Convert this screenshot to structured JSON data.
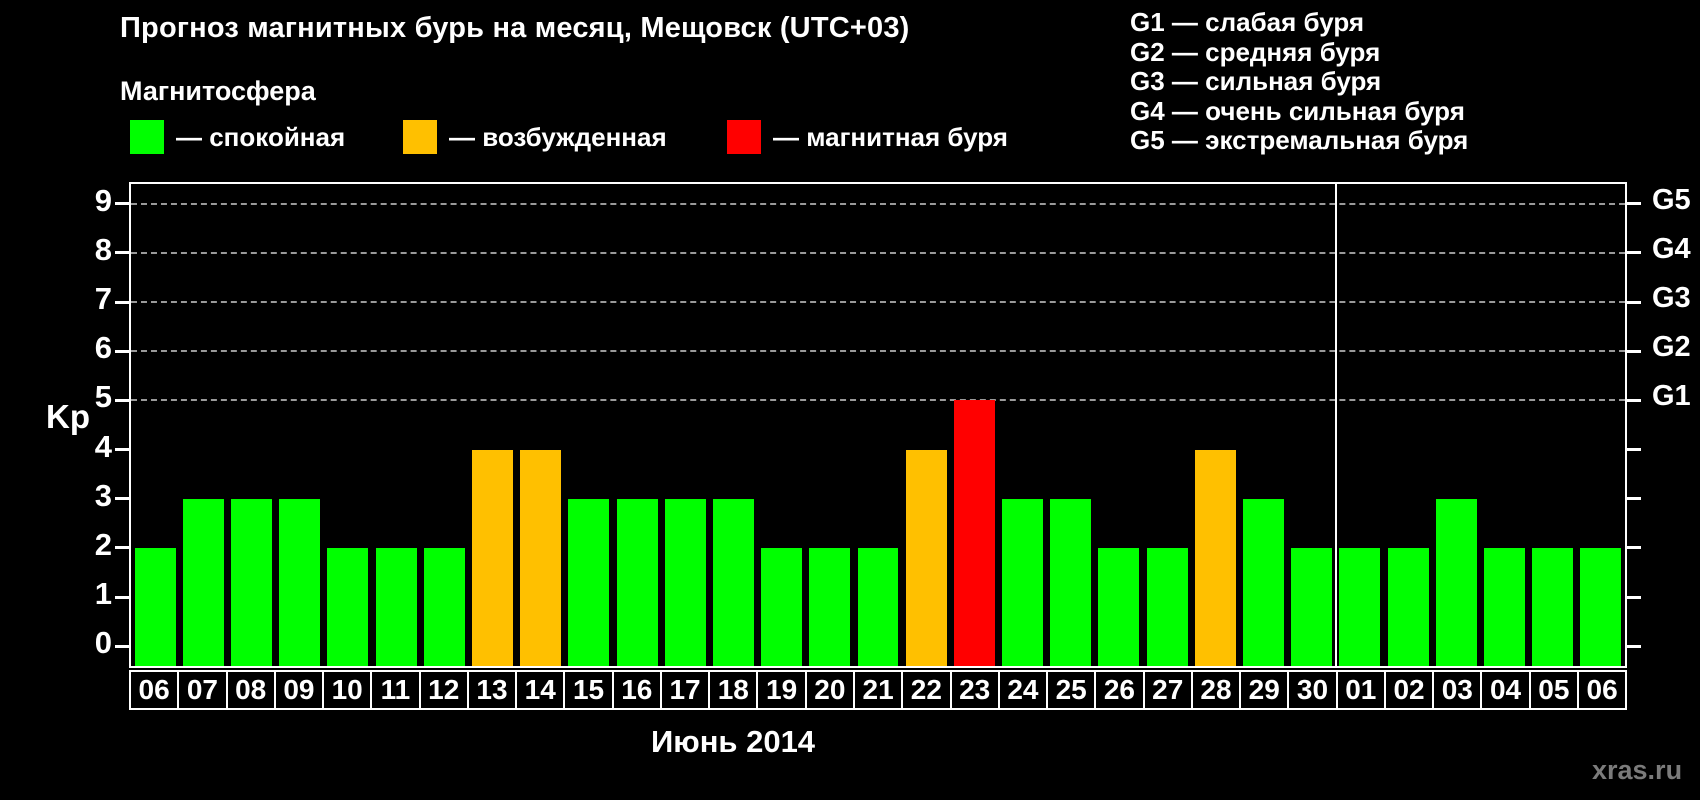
{
  "header": {
    "title": "Прогноз магнитных бурь на месяц, Мещовск (UTC+03)",
    "watermark": "xras.ru"
  },
  "legend": {
    "title": "Магнитосфера",
    "items": [
      {
        "label": "— спокойная",
        "color": "#00ff00"
      },
      {
        "label": "— возбужденная",
        "color": "#ffc000"
      },
      {
        "label": "— магнитная буря",
        "color": "#ff0000"
      }
    ]
  },
  "g_scale_legend": {
    "items": [
      "G1 — слабая буря",
      "G2 — средняя буря",
      "G3 — сильная буря",
      "G4 — очень сильная буря",
      "G5 — экстремальная буря"
    ]
  },
  "chart_data": {
    "type": "bar",
    "title": "Прогноз магнитных бурь на месяц, Мещовск (UTC+03)",
    "ylabel_left": "Kp",
    "x_caption": "Июнь 2014",
    "categories": [
      "06",
      "07",
      "08",
      "09",
      "10",
      "11",
      "12",
      "13",
      "14",
      "15",
      "16",
      "17",
      "18",
      "19",
      "20",
      "21",
      "22",
      "23",
      "24",
      "25",
      "26",
      "27",
      "28",
      "29",
      "30",
      "01",
      "02",
      "03",
      "04",
      "05",
      "06"
    ],
    "values": [
      2,
      3,
      3,
      3,
      2,
      2,
      2,
      4,
      4,
      3,
      3,
      3,
      3,
      2,
      2,
      2,
      4,
      5,
      3,
      3,
      2,
      2,
      4,
      3,
      2,
      2,
      2,
      3,
      2,
      2,
      2
    ],
    "bar_colors": [
      "#00ff00",
      "#00ff00",
      "#00ff00",
      "#00ff00",
      "#00ff00",
      "#00ff00",
      "#00ff00",
      "#ffc000",
      "#ffc000",
      "#00ff00",
      "#00ff00",
      "#00ff00",
      "#00ff00",
      "#00ff00",
      "#00ff00",
      "#00ff00",
      "#ffc000",
      "#ff0000",
      "#00ff00",
      "#00ff00",
      "#00ff00",
      "#00ff00",
      "#ffc000",
      "#00ff00",
      "#00ff00",
      "#00ff00",
      "#00ff00",
      "#00ff00",
      "#00ff00",
      "#00ff00",
      "#00ff00"
    ],
    "color_rule": {
      "quiet_kp_max": 3,
      "active_kp": 4,
      "storm_kp_min": 5
    },
    "ylim": [
      0,
      9
    ],
    "yticks": [
      0,
      1,
      2,
      3,
      4,
      5,
      6,
      7,
      8,
      9
    ],
    "grid_levels": [
      5,
      6,
      7,
      8,
      9
    ],
    "right_axis": [
      {
        "label": "G1",
        "kp": 5
      },
      {
        "label": "G2",
        "kp": 6
      },
      {
        "label": "G3",
        "kp": 7
      },
      {
        "label": "G4",
        "kp": 8
      },
      {
        "label": "G5",
        "kp": 9
      }
    ],
    "separator_after_index": 24,
    "separator_between": [
      "30",
      "01"
    ],
    "legend_position": "top-left",
    "grid": "dashed horizontal at G1–G5 levels only"
  }
}
